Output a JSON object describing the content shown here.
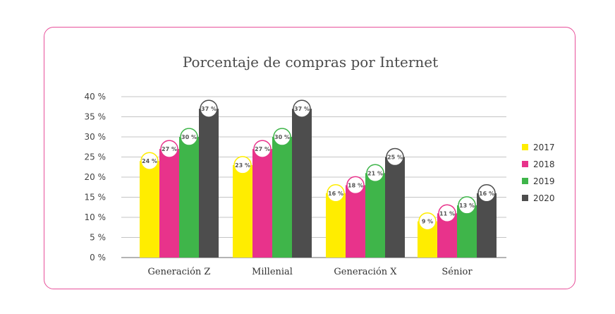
{
  "chart_data": {
    "type": "bar",
    "title": "Porcentaje de compras por Internet",
    "categories": [
      "Generación Z",
      "Millenial",
      "Generación X",
      "Sénior"
    ],
    "series": [
      {
        "name": "2017",
        "color": "#ffed00",
        "values": [
          24,
          23,
          16,
          9
        ]
      },
      {
        "name": "2018",
        "color": "#e8338b",
        "values": [
          27,
          27,
          18,
          11
        ]
      },
      {
        "name": "2019",
        "color": "#3fb54a",
        "values": [
          30,
          30,
          21,
          13
        ]
      },
      {
        "name": "2020",
        "color": "#4d4d4d",
        "values": [
          37,
          37,
          25,
          16
        ]
      }
    ],
    "yticks": [
      "0 %",
      "5 %",
      "10 %",
      "15 %",
      "20 %",
      "25 %",
      "30 %",
      "35 %",
      "40 %"
    ],
    "ylim": [
      0,
      40
    ],
    "value_suffix": " %",
    "grid": true,
    "legend_position": "right"
  }
}
